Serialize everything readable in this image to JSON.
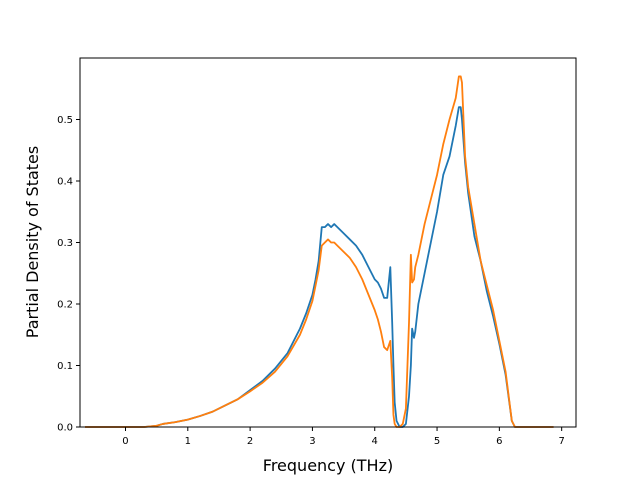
{
  "chart_data": {
    "type": "line",
    "title": "",
    "xlabel": "Frequency (THz)",
    "ylabel": "Partial Density of States",
    "xlim": [
      -0.73,
      7.23
    ],
    "ylim": [
      0.0,
      0.6
    ],
    "x_ticks": [
      0,
      1,
      2,
      3,
      4,
      5,
      6,
      7
    ],
    "y_ticks": [
      0.0,
      0.1,
      0.2,
      0.3,
      0.4,
      0.5
    ],
    "x_tick_labels": [
      "0",
      "1",
      "2",
      "3",
      "4",
      "5",
      "6",
      "7"
    ],
    "y_tick_labels": [
      "0.0",
      "0.1",
      "0.2",
      "0.3",
      "0.4",
      "0.5"
    ],
    "grid": false,
    "legend": "none",
    "series": [
      {
        "color": "#1f77b4",
        "x": [
          -0.65,
          0.0,
          0.3,
          0.5,
          0.6,
          0.8,
          1.0,
          1.2,
          1.4,
          1.6,
          1.8,
          2.0,
          2.2,
          2.4,
          2.6,
          2.8,
          2.9,
          3.0,
          3.05,
          3.1,
          3.15,
          3.2,
          3.25,
          3.3,
          3.35,
          3.4,
          3.5,
          3.6,
          3.7,
          3.8,
          3.9,
          4.0,
          4.05,
          4.1,
          4.15,
          4.2,
          4.25,
          4.28,
          4.3,
          4.32,
          4.35,
          4.4,
          4.45,
          4.5,
          4.55,
          4.58,
          4.6,
          4.63,
          4.65,
          4.7,
          4.8,
          4.9,
          5.0,
          5.1,
          5.2,
          5.3,
          5.35,
          5.38,
          5.4,
          5.45,
          5.5,
          5.6,
          5.7,
          5.8,
          5.9,
          6.0,
          6.1,
          6.2,
          6.25,
          6.3,
          6.87
        ],
        "y": [
          0.0,
          0.0,
          0.0,
          0.002,
          0.005,
          0.008,
          0.012,
          0.018,
          0.025,
          0.035,
          0.045,
          0.06,
          0.075,
          0.095,
          0.12,
          0.16,
          0.185,
          0.215,
          0.24,
          0.27,
          0.325,
          0.325,
          0.33,
          0.325,
          0.33,
          0.325,
          0.315,
          0.305,
          0.295,
          0.28,
          0.26,
          0.24,
          0.235,
          0.225,
          0.21,
          0.21,
          0.26,
          0.17,
          0.1,
          0.04,
          0.01,
          0.0,
          0.0,
          0.005,
          0.05,
          0.1,
          0.16,
          0.145,
          0.155,
          0.2,
          0.25,
          0.3,
          0.35,
          0.41,
          0.44,
          0.49,
          0.52,
          0.52,
          0.5,
          0.43,
          0.38,
          0.31,
          0.27,
          0.22,
          0.18,
          0.135,
          0.085,
          0.01,
          0.0,
          0.0,
          0.0
        ]
      },
      {
        "color": "#ff7f0e",
        "x": [
          -0.65,
          0.0,
          0.3,
          0.5,
          0.6,
          0.8,
          1.0,
          1.2,
          1.4,
          1.6,
          1.8,
          2.0,
          2.2,
          2.4,
          2.6,
          2.8,
          2.9,
          3.0,
          3.05,
          3.1,
          3.15,
          3.2,
          3.25,
          3.3,
          3.35,
          3.4,
          3.5,
          3.6,
          3.7,
          3.8,
          3.9,
          4.0,
          4.05,
          4.1,
          4.15,
          4.2,
          4.25,
          4.28,
          4.3,
          4.32,
          4.35,
          4.4,
          4.45,
          4.5,
          4.55,
          4.58,
          4.6,
          4.63,
          4.65,
          4.7,
          4.8,
          4.9,
          5.0,
          5.1,
          5.2,
          5.3,
          5.35,
          5.38,
          5.4,
          5.45,
          5.5,
          5.6,
          5.7,
          5.8,
          5.9,
          6.0,
          6.1,
          6.2,
          6.25,
          6.3,
          6.87
        ],
        "y": [
          0.0,
          0.0,
          0.0,
          0.002,
          0.005,
          0.008,
          0.012,
          0.018,
          0.025,
          0.035,
          0.045,
          0.058,
          0.072,
          0.09,
          0.115,
          0.15,
          0.175,
          0.205,
          0.23,
          0.255,
          0.295,
          0.3,
          0.305,
          0.3,
          0.3,
          0.295,
          0.285,
          0.275,
          0.26,
          0.24,
          0.215,
          0.19,
          0.175,
          0.155,
          0.13,
          0.125,
          0.14,
          0.08,
          0.02,
          0.005,
          0.0,
          0.0,
          0.005,
          0.03,
          0.17,
          0.28,
          0.235,
          0.24,
          0.26,
          0.28,
          0.33,
          0.37,
          0.41,
          0.46,
          0.5,
          0.535,
          0.57,
          0.57,
          0.56,
          0.44,
          0.39,
          0.33,
          0.27,
          0.23,
          0.19,
          0.14,
          0.09,
          0.01,
          0.0,
          0.0,
          0.0
        ]
      }
    ]
  }
}
